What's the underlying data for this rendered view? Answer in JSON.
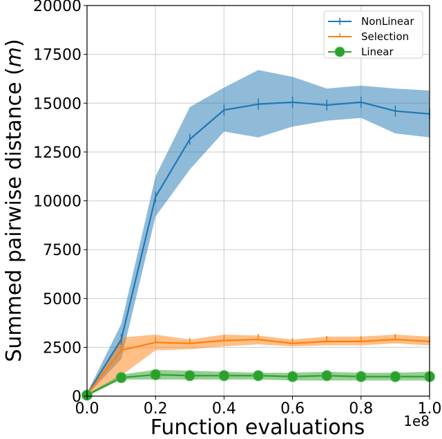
{
  "chart_data": {
    "type": "line",
    "title": "",
    "xlabel": "Function evaluations",
    "ylabel": "Summed pairwise distance (m)",
    "ylabel_parts": {
      "text": "Summed pairwise distance (",
      "italic": "m",
      "close": ")"
    },
    "x_offset_label": "1e8",
    "x": [
      0.0,
      0.1,
      0.2,
      0.3,
      0.4,
      0.5,
      0.6,
      0.7,
      0.8,
      0.9,
      1.0
    ],
    "xlim": [
      0.0,
      1.0
    ],
    "ylim": [
      0,
      20000
    ],
    "xticks": [
      "0.0",
      "0.2",
      "0.4",
      "0.6",
      "0.8",
      "1.0"
    ],
    "yticks": [
      "0",
      "2500",
      "5000",
      "7500",
      "10000",
      "12500",
      "15000",
      "17500",
      "20000"
    ],
    "grid": true,
    "legend_position": "upper right",
    "series": [
      {
        "name": "NonLinear",
        "color": "#1f77b4",
        "marker": "vline",
        "values": [
          100,
          2900,
          10200,
          13150,
          14650,
          14950,
          15050,
          14900,
          15050,
          14600,
          14450
        ],
        "lower": [
          50,
          1900,
          9200,
          11600,
          13550,
          13250,
          13800,
          14100,
          14250,
          13450,
          13250
        ],
        "upper": [
          150,
          3700,
          11250,
          14800,
          15800,
          16700,
          16350,
          15750,
          15900,
          15750,
          15650
        ]
      },
      {
        "name": "Selection",
        "color": "#ff7f0e",
        "marker": "vline",
        "values": [
          100,
          2350,
          2750,
          2700,
          2850,
          2900,
          2700,
          2800,
          2800,
          2900,
          2800
        ],
        "lower": [
          50,
          1050,
          2350,
          2400,
          2550,
          2650,
          2550,
          2600,
          2600,
          2700,
          2600
        ],
        "upper": [
          150,
          3000,
          3150,
          2900,
          3150,
          3100,
          2900,
          3050,
          3050,
          3150,
          3050
        ]
      },
      {
        "name": "Linear",
        "color": "#2ca02c",
        "marker": "circle",
        "values": [
          50,
          950,
          1100,
          1050,
          1050,
          1050,
          1000,
          1050,
          1000,
          1000,
          1000
        ],
        "lower": [
          0,
          850,
          850,
          850,
          850,
          850,
          800,
          800,
          800,
          800,
          800
        ],
        "upper": [
          100,
          1100,
          1350,
          1300,
          1250,
          1200,
          1200,
          1250,
          1200,
          1200,
          1250
        ]
      }
    ]
  }
}
